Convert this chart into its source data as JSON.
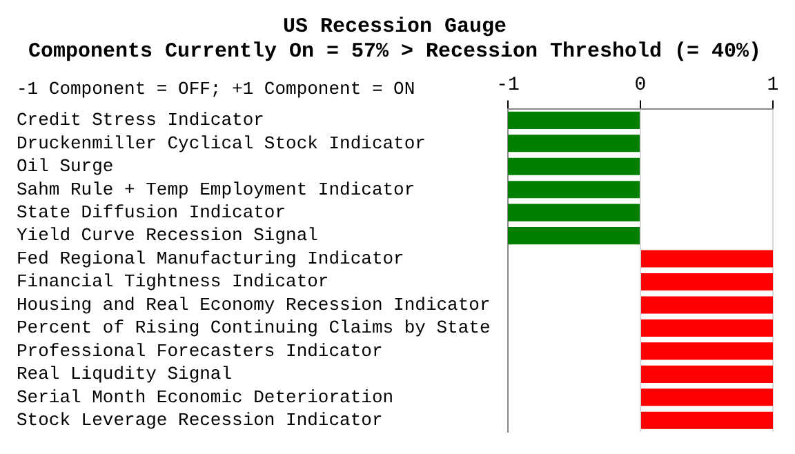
{
  "chart_data": {
    "type": "bar",
    "orientation": "horizontal",
    "title": "US Recession Gauge",
    "subtitle": "Components Currently On = 57% > Recession Threshold (= 40%)",
    "annotations": [
      "-1 Component = OFF; +1 Component = ON"
    ],
    "categories": [
      "Credit Stress Indicator",
      "Druckenmiller Cyclical Stock Indicator",
      "Oil Surge",
      "Sahm Rule + Temp Employment Indicator",
      "State Diffusion Indicator",
      "Yield Curve Recession Signal",
      "Fed Regional Manufacturing Indicator",
      "Financial Tightness Indicator",
      "Housing and Real Economy Recession Indicator",
      "Percent of Rising Continuing Claims by State",
      "Professional Forecasters Indicator",
      "Real Liqudity Signal",
      "Serial Month Economic Deterioration",
      "Stock Leverage Recession Indicator"
    ],
    "values": [
      -1,
      -1,
      -1,
      -1,
      -1,
      -1,
      1,
      1,
      1,
      1,
      1,
      1,
      1,
      1
    ],
    "colors": [
      "#008000",
      "#008000",
      "#008000",
      "#008000",
      "#008000",
      "#008000",
      "#ff0000",
      "#ff0000",
      "#ff0000",
      "#ff0000",
      "#ff0000",
      "#ff0000",
      "#ff0000",
      "#ff0000"
    ],
    "xlim": [
      -1,
      1
    ],
    "xticks": [
      -1,
      0,
      1
    ],
    "grid": "x"
  }
}
